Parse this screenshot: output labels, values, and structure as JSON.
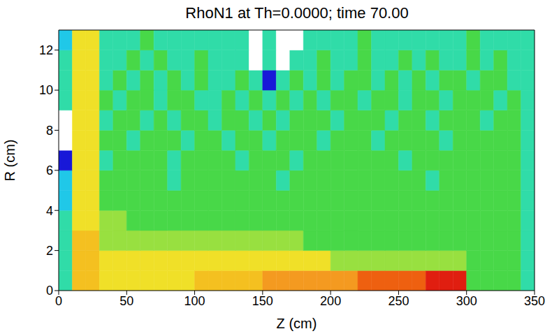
{
  "chart_data": {
    "type": "heatmap",
    "title": "RhoN1 at Th=0.0000; time 70.00",
    "x_label": "Z (cm)",
    "y_label": "R (cm)",
    "xlim": [
      0,
      350
    ],
    "ylim": [
      0,
      13
    ],
    "xticks": [
      0,
      50,
      100,
      150,
      200,
      250,
      300,
      350
    ],
    "yticks": [
      0,
      2,
      4,
      6,
      8,
      10,
      12
    ],
    "x_edges": [
      0,
      10,
      20,
      30,
      40,
      50,
      60,
      70,
      80,
      90,
      100,
      110,
      120,
      130,
      140,
      150,
      160,
      170,
      180,
      190,
      200,
      210,
      220,
      230,
      240,
      250,
      260,
      270,
      280,
      290,
      300,
      310,
      320,
      330,
      340,
      350
    ],
    "y_edges": [
      0,
      1,
      2,
      3,
      4,
      5,
      6,
      7,
      8,
      9,
      10,
      11,
      12,
      13
    ],
    "color_range": [
      0,
      10
    ],
    "cells": [
      [
        3,
        7,
        7,
        6,
        6,
        6,
        6,
        6,
        6,
        6,
        7,
        7,
        7,
        7,
        7,
        8,
        8,
        8,
        8,
        8,
        8,
        8,
        9,
        9,
        9,
        9,
        9,
        10,
        10,
        10,
        4,
        4,
        4,
        4,
        3
      ],
      [
        3,
        7,
        7,
        6,
        6,
        6,
        6,
        6,
        6,
        6,
        6,
        6,
        6,
        6,
        6,
        6,
        6,
        6,
        6,
        6,
        5,
        5,
        5,
        5,
        5,
        5,
        5,
        5,
        5,
        5,
        4,
        4,
        4,
        4,
        3
      ],
      [
        3,
        7,
        7,
        5,
        5,
        5,
        5,
        5,
        5,
        5,
        5,
        5,
        5,
        5,
        5,
        5,
        5,
        5,
        4,
        4,
        4,
        4,
        4,
        4,
        4,
        4,
        4,
        4,
        4,
        4,
        4,
        4,
        4,
        4,
        3
      ],
      [
        3,
        6,
        6,
        5,
        5,
        4,
        4,
        4,
        4,
        4,
        4,
        4,
        4,
        4,
        4,
        4,
        4,
        4,
        4,
        4,
        4,
        4,
        4,
        4,
        4,
        4,
        4,
        4,
        4,
        4,
        4,
        4,
        4,
        4,
        3
      ],
      [
        2,
        6,
        6,
        4,
        4,
        4,
        4,
        4,
        4,
        4,
        4,
        4,
        4,
        4,
        4,
        4,
        4,
        4,
        4,
        4,
        4,
        4,
        4,
        4,
        4,
        4,
        4,
        4,
        4,
        4,
        4,
        4,
        4,
        4,
        3
      ],
      [
        2,
        6,
        6,
        4,
        4,
        4,
        4,
        4,
        3,
        4,
        4,
        4,
        4,
        4,
        4,
        4,
        3,
        4,
        4,
        4,
        4,
        4,
        4,
        4,
        4,
        4,
        4,
        3,
        4,
        4,
        4,
        4,
        4,
        4,
        3
      ],
      [
        1,
        6,
        6,
        3,
        4,
        4,
        4,
        4,
        3,
        4,
        4,
        4,
        4,
        3,
        4,
        4,
        4,
        3,
        4,
        4,
        4,
        4,
        4,
        4,
        4,
        3,
        4,
        4,
        4,
        4,
        4,
        4,
        4,
        4,
        3
      ],
      [
        0,
        6,
        6,
        4,
        4,
        3,
        4,
        4,
        4,
        3,
        4,
        4,
        3,
        4,
        4,
        3,
        4,
        4,
        4,
        3,
        4,
        4,
        4,
        3,
        4,
        4,
        4,
        4,
        3,
        4,
        4,
        4,
        4,
        4,
        3
      ],
      [
        0,
        6,
        6,
        3,
        4,
        4,
        3,
        4,
        3,
        4,
        4,
        3,
        4,
        4,
        3,
        4,
        3,
        4,
        4,
        4,
        3,
        4,
        4,
        4,
        3,
        4,
        4,
        3,
        4,
        4,
        4,
        3,
        4,
        4,
        3
      ],
      [
        3,
        6,
        6,
        4,
        3,
        4,
        4,
        3,
        4,
        4,
        3,
        3,
        4,
        3,
        4,
        3,
        4,
        3,
        4,
        3,
        4,
        4,
        3,
        4,
        4,
        3,
        4,
        4,
        3,
        4,
        4,
        4,
        3,
        4,
        3
      ],
      [
        3,
        6,
        6,
        3,
        4,
        3,
        4,
        3,
        4,
        3,
        4,
        3,
        3,
        4,
        3,
        1,
        3,
        4,
        3,
        4,
        3,
        4,
        4,
        3,
        4,
        3,
        4,
        3,
        4,
        4,
        3,
        4,
        4,
        3,
        3
      ],
      [
        3,
        6,
        6,
        3,
        3,
        4,
        3,
        4,
        3,
        3,
        4,
        3,
        3,
        3,
        0,
        3,
        0,
        3,
        3,
        4,
        3,
        3,
        4,
        3,
        3,
        4,
        3,
        4,
        3,
        3,
        4,
        3,
        4,
        3,
        3
      ],
      [
        2,
        6,
        6,
        3,
        3,
        3,
        4,
        3,
        3,
        3,
        3,
        3,
        3,
        3,
        0,
        3,
        0,
        0,
        3,
        3,
        3,
        3,
        4,
        3,
        3,
        3,
        3,
        3,
        3,
        3,
        4,
        3,
        3,
        3,
        3
      ]
    ]
  }
}
